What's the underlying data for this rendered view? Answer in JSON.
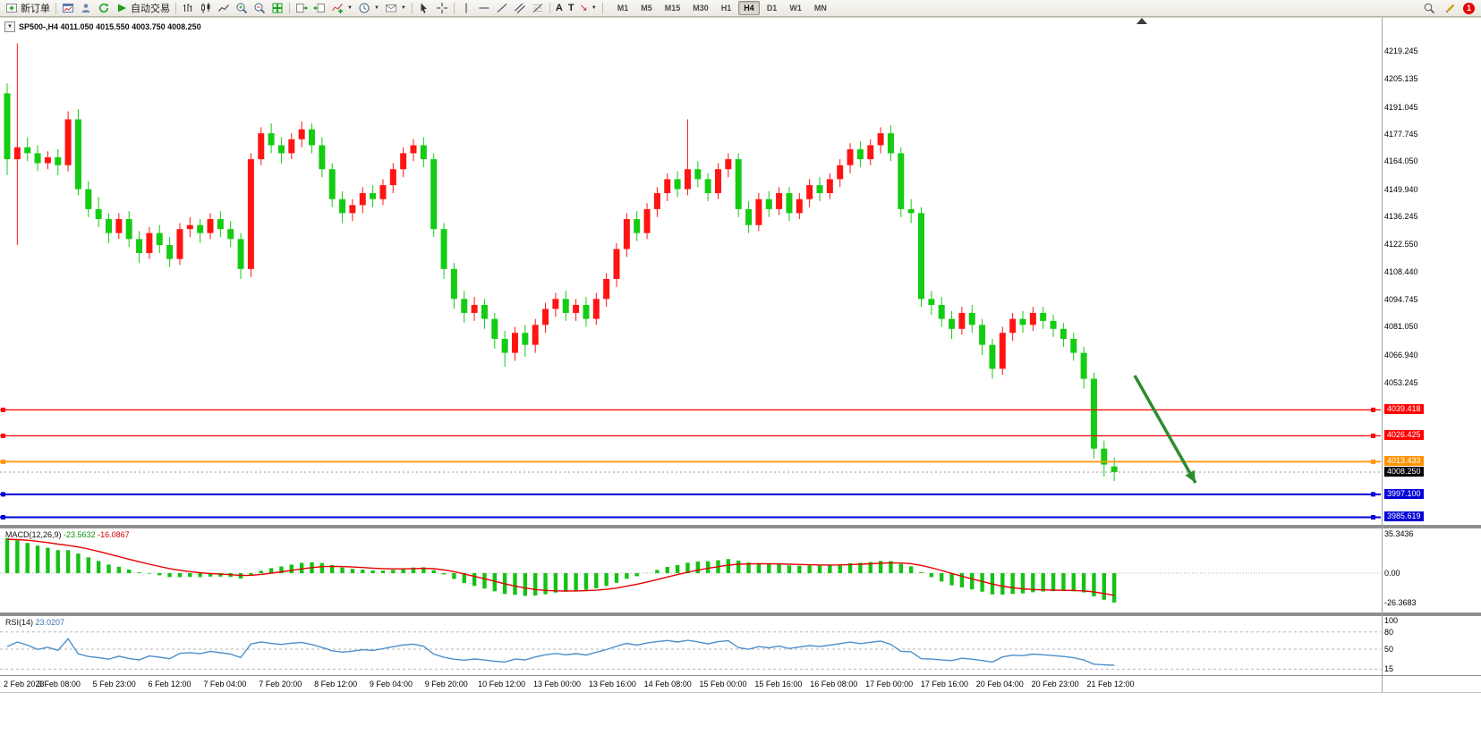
{
  "toolbar": {
    "new_order": "新订单",
    "autotrade": "自动交易",
    "text_tool": "A",
    "label_tool": "T",
    "timeframes": [
      "M1",
      "M5",
      "M15",
      "M30",
      "H1",
      "H4",
      "D1",
      "W1",
      "MN"
    ],
    "active_timeframe": "H4",
    "notification_count": "1"
  },
  "chart": {
    "title": "SP500-,H4 4011.050 4015.550 4003.750 4008.250",
    "symbol": "SP500-",
    "period": "H4"
  },
  "chart_data": {
    "type": "candlestick",
    "symbol": "SP500-",
    "timeframe": "H4",
    "bull_color": "#ff1414",
    "bear_color": "#14cc14",
    "y_axis_ticks": [
      "4219.245",
      "4205.135",
      "4191.045",
      "4177.745",
      "4164.050",
      "4149.940",
      "4136.245",
      "4122.550",
      "4108.440",
      "4094.745",
      "4081.050",
      "4066.940",
      "4053.245"
    ],
    "x_labels": [
      "2 Feb 2023",
      "3 Feb 08:00",
      "5 Feb 23:00",
      "6 Feb 12:00",
      "7 Feb 04:00",
      "7 Feb 20:00",
      "8 Feb 12:00",
      "9 Feb 04:00",
      "9 Feb 20:00",
      "10 Feb 12:00",
      "13 Feb 00:00",
      "13 Feb 16:00",
      "14 Feb 08:00",
      "15 Feb 00:00",
      "15 Feb 16:00",
      "16 Feb 08:00",
      "17 Feb 00:00",
      "17 Feb 16:00",
      "20 Feb 04:00",
      "20 Feb 23:00",
      "21 Feb 12:00"
    ],
    "levels": [
      {
        "price": 4039.418,
        "label": "4039.418",
        "color": "#ff0000",
        "width": 1.2
      },
      {
        "price": 4026.425,
        "label": "4026.425",
        "color": "#ff0000",
        "width": 1.2
      },
      {
        "price": 4013.433,
        "label": "4013.433",
        "color": "#ff9400",
        "width": 1.8
      },
      {
        "price": 3997.1,
        "label": "3997.100",
        "color": "#0000d8",
        "width": 2
      },
      {
        "price": 3985.619,
        "label": "3985.619",
        "color": "#0000d8",
        "width": 2
      }
    ],
    "current_price": {
      "price": 4008.25,
      "label": "4008.250"
    },
    "indicators": [
      {
        "name": "MACD",
        "name_label": "MACD(12,26,9)",
        "value1": "-23.5632",
        "value2": "-16.0867",
        "scale_max": "35.3436",
        "scale_zero": "0.00",
        "scale_min": "-26.3683",
        "histogram_color": "#14c214",
        "signal_color": "#e60000"
      },
      {
        "name": "RSI",
        "name_label": "RSI(14)",
        "value": "23.0207",
        "levels": [
          "100",
          "80",
          "50",
          "15"
        ],
        "line_color": "#4d8fcc"
      }
    ],
    "annotations": [
      {
        "type": "arrow",
        "from": [
          1268,
          420
        ],
        "to": [
          1336,
          540
        ],
        "color": "#2e8b2e"
      }
    ],
    "ohlc": [
      [
        4198,
        4203,
        4157,
        4165
      ],
      [
        4165,
        4223,
        4122,
        4171
      ],
      [
        4171,
        4176,
        4164,
        4168
      ],
      [
        4168,
        4172,
        4159,
        4163
      ],
      [
        4163,
        4169,
        4160,
        4166
      ],
      [
        4166,
        4170,
        4157,
        4162
      ],
      [
        4162,
        4189,
        4159,
        4185
      ],
      [
        4185,
        4190,
        4147,
        4150
      ],
      [
        4150,
        4154,
        4136,
        4140
      ],
      [
        4140,
        4146,
        4131,
        4135
      ],
      [
        4135,
        4138,
        4123,
        4128
      ],
      [
        4128,
        4138,
        4125,
        4135
      ],
      [
        4135,
        4139,
        4121,
        4125
      ],
      [
        4125,
        4129,
        4113,
        4118
      ],
      [
        4118,
        4131,
        4115,
        4128
      ],
      [
        4128,
        4132,
        4118,
        4122
      ],
      [
        4122,
        4126,
        4111,
        4115
      ],
      [
        4115,
        4133,
        4112,
        4130
      ],
      [
        4130,
        4136,
        4126,
        4132
      ],
      [
        4132,
        4135,
        4123,
        4128
      ],
      [
        4128,
        4138,
        4125,
        4135
      ],
      [
        4135,
        4139,
        4126,
        4130
      ],
      [
        4130,
        4134,
        4121,
        4125
      ],
      [
        4125,
        4128,
        4105,
        4110
      ],
      [
        4110,
        4168,
        4106,
        4165
      ],
      [
        4165,
        4181,
        4162,
        4178
      ],
      [
        4178,
        4183,
        4168,
        4172
      ],
      [
        4172,
        4176,
        4163,
        4168
      ],
      [
        4168,
        4178,
        4165,
        4175
      ],
      [
        4175,
        4184,
        4171,
        4180
      ],
      [
        4180,
        4183,
        4168,
        4172
      ],
      [
        4172,
        4176,
        4156,
        4160
      ],
      [
        4160,
        4163,
        4141,
        4145
      ],
      [
        4145,
        4149,
        4133,
        4138
      ],
      [
        4138,
        4145,
        4134,
        4142
      ],
      [
        4142,
        4151,
        4138,
        4148
      ],
      [
        4148,
        4152,
        4141,
        4145
      ],
      [
        4145,
        4155,
        4142,
        4152
      ],
      [
        4152,
        4163,
        4148,
        4160
      ],
      [
        4160,
        4171,
        4156,
        4168
      ],
      [
        4168,
        4175,
        4164,
        4172
      ],
      [
        4172,
        4176,
        4161,
        4165
      ],
      [
        4165,
        4168,
        4126,
        4130
      ],
      [
        4130,
        4133,
        4105,
        4110
      ],
      [
        4110,
        4113,
        4090,
        4095
      ],
      [
        4095,
        4099,
        4083,
        4088
      ],
      [
        4088,
        4096,
        4084,
        4092
      ],
      [
        4092,
        4095,
        4080,
        4085
      ],
      [
        4085,
        4088,
        4070,
        4075
      ],
      [
        4075,
        4079,
        4061,
        4068
      ],
      [
        4068,
        4081,
        4064,
        4078
      ],
      [
        4078,
        4082,
        4066,
        4072
      ],
      [
        4072,
        4085,
        4068,
        4082
      ],
      [
        4082,
        4093,
        4078,
        4090
      ],
      [
        4090,
        4098,
        4086,
        4095
      ],
      [
        4095,
        4099,
        4084,
        4088
      ],
      [
        4088,
        4095,
        4084,
        4092
      ],
      [
        4092,
        4096,
        4081,
        4085
      ],
      [
        4085,
        4098,
        4082,
        4095
      ],
      [
        4095,
        4108,
        4091,
        4105
      ],
      [
        4105,
        4123,
        4101,
        4120
      ],
      [
        4120,
        4138,
        4116,
        4135
      ],
      [
        4135,
        4139,
        4124,
        4128
      ],
      [
        4128,
        4143,
        4125,
        4140
      ],
      [
        4140,
        4151,
        4136,
        4148
      ],
      [
        4148,
        4158,
        4144,
        4155
      ],
      [
        4155,
        4159,
        4146,
        4150
      ],
      [
        4150,
        4185,
        4147,
        4160
      ],
      [
        4160,
        4164,
        4151,
        4155
      ],
      [
        4155,
        4158,
        4144,
        4148
      ],
      [
        4148,
        4163,
        4145,
        4160
      ],
      [
        4160,
        4168,
        4156,
        4165
      ],
      [
        4165,
        4168,
        4136,
        4140
      ],
      [
        4140,
        4144,
        4128,
        4132
      ],
      [
        4132,
        4148,
        4129,
        4145
      ],
      [
        4145,
        4149,
        4136,
        4140
      ],
      [
        4140,
        4151,
        4137,
        4148
      ],
      [
        4148,
        4151,
        4134,
        4138
      ],
      [
        4138,
        4148,
        4135,
        4145
      ],
      [
        4145,
        4155,
        4141,
        4152
      ],
      [
        4152,
        4156,
        4144,
        4148
      ],
      [
        4148,
        4158,
        4145,
        4155
      ],
      [
        4155,
        4165,
        4151,
        4162
      ],
      [
        4162,
        4173,
        4158,
        4170
      ],
      [
        4170,
        4174,
        4161,
        4165
      ],
      [
        4165,
        4175,
        4162,
        4172
      ],
      [
        4172,
        4181,
        4168,
        4178
      ],
      [
        4178,
        4182,
        4164,
        4168
      ],
      [
        4168,
        4171,
        4136,
        4140
      ],
      [
        4140,
        4145,
        4133,
        4138
      ],
      [
        4138,
        4141,
        4091,
        4095
      ],
      [
        4095,
        4099,
        4087,
        4092
      ],
      [
        4092,
        4096,
        4081,
        4085
      ],
      [
        4085,
        4089,
        4075,
        4080
      ],
      [
        4080,
        4091,
        4077,
        4088
      ],
      [
        4088,
        4092,
        4078,
        4082
      ],
      [
        4082,
        4085,
        4067,
        4072
      ],
      [
        4072,
        4075,
        4055,
        4060
      ],
      [
        4060,
        4081,
        4057,
        4078
      ],
      [
        4078,
        4088,
        4074,
        4085
      ],
      [
        4085,
        4089,
        4078,
        4082
      ],
      [
        4082,
        4091,
        4079,
        4088
      ],
      [
        4088,
        4091,
        4080,
        4084
      ],
      [
        4084,
        4087,
        4076,
        4080
      ],
      [
        4080,
        4083,
        4071,
        4075
      ],
      [
        4075,
        4078,
        4064,
        4068
      ],
      [
        4068,
        4071,
        4050,
        4055
      ],
      [
        4055,
        4058,
        4015,
        4020
      ],
      [
        4020,
        4024,
        4006,
        4012
      ],
      [
        4011.05,
        4015.55,
        4003.75,
        4008.25
      ]
    ]
  }
}
